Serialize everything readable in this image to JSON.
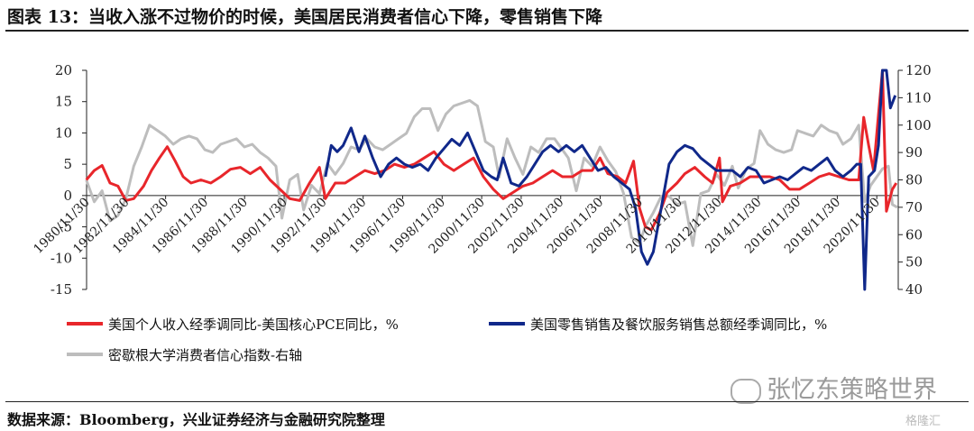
{
  "title": "图表 13：当收入涨不过物价的时候，美国居民消费者信心下降，零售销售下降",
  "source": "数据来源：Bloomberg，兴业证券经济与金融研究院整理",
  "watermark": "张忆东策略世界",
  "logo_text": "格隆汇",
  "colors": {
    "income": "#e8262b",
    "retail": "#10288a",
    "sentiment": "#bdbdbd"
  },
  "chart_data": {
    "type": "line",
    "y_left": {
      "min": -15,
      "max": 20,
      "ticks": [
        -15,
        -10,
        -5,
        0,
        5,
        10,
        15,
        20
      ]
    },
    "y_right": {
      "min": 40,
      "max": 120,
      "ticks": [
        40,
        50,
        60,
        70,
        80,
        90,
        100,
        110,
        120
      ]
    },
    "x_range": [
      "1980-11-30",
      "2021-12-31"
    ],
    "x_ticks": [
      "1980/11/30",
      "1982/11/30",
      "1984/11/30",
      "1986/11/30",
      "1988/11/30",
      "1990/11/30",
      "1992/11/30",
      "1994/11/30",
      "1996/11/30",
      "1998/11/30",
      "2000/11/30",
      "2002/11/30",
      "2004/11/30",
      "2006/11/30",
      "2008/11/30",
      "2010/11/30",
      "2012/11/30",
      "2014/11/30",
      "2016/11/30",
      "2018/11/30",
      "2020/11/30"
    ],
    "series": [
      {
        "name": "美国个人收入经季调同比-美国核心PCE同比，%",
        "axis": "left",
        "color": "#e8262b",
        "points": [
          [
            1980.9,
            2.5
          ],
          [
            1981.3,
            4.0
          ],
          [
            1981.7,
            4.8
          ],
          [
            1982.1,
            2.0
          ],
          [
            1982.5,
            1.5
          ],
          [
            1982.9,
            -0.8
          ],
          [
            1983.3,
            -0.5
          ],
          [
            1983.8,
            1.5
          ],
          [
            1984.2,
            4.0
          ],
          [
            1984.6,
            6.0
          ],
          [
            1985.0,
            7.8
          ],
          [
            1985.4,
            5.5
          ],
          [
            1985.8,
            3.0
          ],
          [
            1986.2,
            2.0
          ],
          [
            1986.7,
            2.5
          ],
          [
            1987.2,
            2.0
          ],
          [
            1987.7,
            3.0
          ],
          [
            1988.2,
            4.2
          ],
          [
            1988.7,
            4.5
          ],
          [
            1989.2,
            3.5
          ],
          [
            1989.7,
            4.5
          ],
          [
            1990.2,
            2.5
          ],
          [
            1990.7,
            1.0
          ],
          [
            1991.2,
            -0.5
          ],
          [
            1991.7,
            -0.8
          ],
          [
            1992.2,
            2.0
          ],
          [
            1992.7,
            4.5
          ],
          [
            1993.0,
            -0.5
          ],
          [
            1993.5,
            2.0
          ],
          [
            1994.0,
            2.0
          ],
          [
            1994.5,
            3.0
          ],
          [
            1995.0,
            4.0
          ],
          [
            1995.5,
            3.5
          ],
          [
            1996.0,
            4.0
          ],
          [
            1996.5,
            5.0
          ],
          [
            1997.0,
            4.5
          ],
          [
            1997.5,
            5.0
          ],
          [
            1998.0,
            6.0
          ],
          [
            1998.5,
            7.0
          ],
          [
            1999.0,
            5.0
          ],
          [
            1999.5,
            4.0
          ],
          [
            2000.0,
            5.0
          ],
          [
            2000.5,
            6.0
          ],
          [
            2001.0,
            3.0
          ],
          [
            2001.5,
            1.0
          ],
          [
            2002.0,
            -0.5
          ],
          [
            2002.5,
            0.5
          ],
          [
            2003.0,
            1.5
          ],
          [
            2003.5,
            2.0
          ],
          [
            2004.0,
            3.0
          ],
          [
            2004.5,
            4.0
          ],
          [
            2005.0,
            3.0
          ],
          [
            2005.5,
            3.0
          ],
          [
            2006.0,
            4.0
          ],
          [
            2006.5,
            4.0
          ],
          [
            2006.9,
            6.0
          ],
          [
            2007.3,
            3.5
          ],
          [
            2007.8,
            3.0
          ],
          [
            2008.2,
            2.0
          ],
          [
            2008.6,
            5.5
          ],
          [
            2008.9,
            -2.0
          ],
          [
            2009.2,
            -5.0
          ],
          [
            2009.5,
            -5.5
          ],
          [
            2009.9,
            -3.0
          ],
          [
            2010.3,
            0.5
          ],
          [
            2010.8,
            2.0
          ],
          [
            2011.2,
            3.5
          ],
          [
            2011.7,
            4.5
          ],
          [
            2012.2,
            3.0
          ],
          [
            2012.6,
            2.0
          ],
          [
            2012.95,
            6.0
          ],
          [
            2013.1,
            -1.0
          ],
          [
            2013.5,
            1.5
          ],
          [
            2014.0,
            2.0
          ],
          [
            2014.5,
            3.0
          ],
          [
            2015.0,
            3.0
          ],
          [
            2015.5,
            3.0
          ],
          [
            2016.0,
            2.5
          ],
          [
            2016.5,
            1.0
          ],
          [
            2017.0,
            1.0
          ],
          [
            2017.5,
            2.0
          ],
          [
            2018.0,
            3.0
          ],
          [
            2018.5,
            3.5
          ],
          [
            2019.0,
            3.0
          ],
          [
            2019.5,
            2.5
          ],
          [
            2020.0,
            2.5
          ],
          [
            2020.25,
            12.5
          ],
          [
            2020.5,
            8.0
          ],
          [
            2020.75,
            4.0
          ],
          [
            2021.0,
            13.0
          ],
          [
            2021.2,
            20.0
          ],
          [
            2021.4,
            -2.5
          ],
          [
            2021.7,
            1.0
          ],
          [
            2021.9,
            2.0
          ]
        ]
      },
      {
        "name": "美国零售销售及餐饮服务销售总额经季调同比，%",
        "axis": "left",
        "color": "#10288a",
        "points": [
          [
            1993.0,
            3.0
          ],
          [
            1993.3,
            8.0
          ],
          [
            1993.6,
            7.0
          ],
          [
            1993.9,
            8.0
          ],
          [
            1994.3,
            10.8
          ],
          [
            1994.7,
            7.0
          ],
          [
            1995.0,
            9.5
          ],
          [
            1995.4,
            6.0
          ],
          [
            1995.8,
            3.0
          ],
          [
            1996.2,
            5.0
          ],
          [
            1996.6,
            6.0
          ],
          [
            1997.0,
            5.0
          ],
          [
            1997.4,
            4.5
          ],
          [
            1997.8,
            5.0
          ],
          [
            1998.2,
            4.0
          ],
          [
            1998.6,
            6.0
          ],
          [
            1999.0,
            7.5
          ],
          [
            1999.4,
            9.0
          ],
          [
            1999.8,
            8.0
          ],
          [
            2000.2,
            10.0
          ],
          [
            2000.6,
            7.0
          ],
          [
            2001.0,
            4.0
          ],
          [
            2001.4,
            3.0
          ],
          [
            2001.7,
            2.5
          ],
          [
            2002.0,
            6.0
          ],
          [
            2002.4,
            2.0
          ],
          [
            2002.8,
            1.5
          ],
          [
            2003.2,
            3.0
          ],
          [
            2003.6,
            5.0
          ],
          [
            2004.0,
            7.0
          ],
          [
            2004.4,
            8.0
          ],
          [
            2004.8,
            7.0
          ],
          [
            2005.2,
            8.0
          ],
          [
            2005.6,
            7.0
          ],
          [
            2006.0,
            8.0
          ],
          [
            2006.4,
            6.0
          ],
          [
            2006.8,
            4.0
          ],
          [
            2007.2,
            4.5
          ],
          [
            2007.6,
            3.0
          ],
          [
            2008.0,
            2.0
          ],
          [
            2008.4,
            1.0
          ],
          [
            2008.7,
            -2.0
          ],
          [
            2009.0,
            -9.0
          ],
          [
            2009.3,
            -11.0
          ],
          [
            2009.6,
            -9.0
          ],
          [
            2010.0,
            -2.0
          ],
          [
            2010.4,
            5.0
          ],
          [
            2010.8,
            7.0
          ],
          [
            2011.2,
            8.0
          ],
          [
            2011.6,
            7.5
          ],
          [
            2012.0,
            6.0
          ],
          [
            2012.4,
            5.0
          ],
          [
            2012.8,
            4.0
          ],
          [
            2013.2,
            4.0
          ],
          [
            2013.6,
            4.0
          ],
          [
            2014.0,
            3.0
          ],
          [
            2014.4,
            4.5
          ],
          [
            2014.8,
            4.0
          ],
          [
            2015.2,
            2.0
          ],
          [
            2015.6,
            2.5
          ],
          [
            2016.0,
            3.0
          ],
          [
            2016.4,
            2.5
          ],
          [
            2016.8,
            3.5
          ],
          [
            2017.2,
            4.5
          ],
          [
            2017.6,
            4.0
          ],
          [
            2018.0,
            5.0
          ],
          [
            2018.4,
            6.0
          ],
          [
            2018.8,
            4.0
          ],
          [
            2019.2,
            3.0
          ],
          [
            2019.6,
            4.0
          ],
          [
            2019.9,
            5.0
          ],
          [
            2020.1,
            5.0
          ],
          [
            2020.3,
            -15.0
          ],
          [
            2020.5,
            3.0
          ],
          [
            2020.8,
            4.0
          ],
          [
            2021.0,
            8.0
          ],
          [
            2021.2,
            20.0
          ],
          [
            2021.4,
            20.0
          ],
          [
            2021.6,
            14.0
          ],
          [
            2021.85,
            16.0
          ]
        ]
      },
      {
        "name": "密歇根大学消费者信心指数-右轴",
        "axis": "right",
        "color": "#bdbdbd",
        "points": [
          [
            1980.9,
            80.0
          ],
          [
            1981.3,
            72.0
          ],
          [
            1981.7,
            76.0
          ],
          [
            1982.1,
            65.0
          ],
          [
            1982.5,
            67.0
          ],
          [
            1982.9,
            73.0
          ],
          [
            1983.3,
            85.0
          ],
          [
            1983.7,
            92.0
          ],
          [
            1984.1,
            100.0
          ],
          [
            1984.5,
            98.0
          ],
          [
            1984.9,
            96.0
          ],
          [
            1985.3,
            93.0
          ],
          [
            1985.7,
            95.0
          ],
          [
            1986.1,
            96.0
          ],
          [
            1986.5,
            95.0
          ],
          [
            1986.9,
            91.0
          ],
          [
            1987.3,
            90.0
          ],
          [
            1987.7,
            93.0
          ],
          [
            1988.1,
            94.0
          ],
          [
            1988.5,
            95.0
          ],
          [
            1988.9,
            92.0
          ],
          [
            1989.3,
            93.0
          ],
          [
            1989.7,
            90.0
          ],
          [
            1990.1,
            88.0
          ],
          [
            1990.5,
            85.0
          ],
          [
            1990.8,
            66.0
          ],
          [
            1991.2,
            80.0
          ],
          [
            1991.6,
            82.0
          ],
          [
            1991.9,
            69.0
          ],
          [
            1992.3,
            78.0
          ],
          [
            1992.7,
            75.0
          ],
          [
            1993.1,
            86.0
          ],
          [
            1993.5,
            82.0
          ],
          [
            1993.9,
            86.0
          ],
          [
            1994.3,
            92.0
          ],
          [
            1994.7,
            91.0
          ],
          [
            1995.1,
            95.0
          ],
          [
            1995.5,
            92.0
          ],
          [
            1995.9,
            91.0
          ],
          [
            1996.3,
            93.0
          ],
          [
            1996.7,
            95.0
          ],
          [
            1997.1,
            97.0
          ],
          [
            1997.5,
            103.0
          ],
          [
            1997.9,
            106.0
          ],
          [
            1998.3,
            106.0
          ],
          [
            1998.7,
            98.0
          ],
          [
            1999.1,
            104.0
          ],
          [
            1999.5,
            107.0
          ],
          [
            1999.9,
            108.0
          ],
          [
            2000.3,
            109.0
          ],
          [
            2000.7,
            107.0
          ],
          [
            2001.1,
            94.0
          ],
          [
            2001.5,
            92.0
          ],
          [
            2001.8,
            81.0
          ],
          [
            2002.2,
            95.0
          ],
          [
            2002.6,
            88.0
          ],
          [
            2003.0,
            82.0
          ],
          [
            2003.4,
            92.0
          ],
          [
            2003.8,
            90.0
          ],
          [
            2004.2,
            95.0
          ],
          [
            2004.6,
            95.0
          ],
          [
            2004.9,
            92.0
          ],
          [
            2005.3,
            88.0
          ],
          [
            2005.7,
            76.0
          ],
          [
            2006.1,
            88.0
          ],
          [
            2006.5,
            85.0
          ],
          [
            2006.9,
            92.0
          ],
          [
            2007.3,
            87.0
          ],
          [
            2007.7,
            83.0
          ],
          [
            2008.1,
            75.0
          ],
          [
            2008.5,
            59.0
          ],
          [
            2008.9,
            57.0
          ],
          [
            2009.2,
            63.0
          ],
          [
            2009.6,
            68.0
          ],
          [
            2010.0,
            74.0
          ],
          [
            2010.4,
            74.0
          ],
          [
            2010.8,
            71.0
          ],
          [
            2011.2,
            72.0
          ],
          [
            2011.6,
            56.0
          ],
          [
            2012.0,
            75.0
          ],
          [
            2012.4,
            76.0
          ],
          [
            2012.8,
            82.0
          ],
          [
            2013.2,
            78.0
          ],
          [
            2013.6,
            85.0
          ],
          [
            2013.9,
            77.0
          ],
          [
            2014.3,
            84.0
          ],
          [
            2014.7,
            86.0
          ],
          [
            2015.0,
            98.0
          ],
          [
            2015.4,
            93.0
          ],
          [
            2015.8,
            91.0
          ],
          [
            2016.2,
            90.0
          ],
          [
            2016.6,
            91.0
          ],
          [
            2016.9,
            98.0
          ],
          [
            2017.3,
            97.0
          ],
          [
            2017.7,
            96.0
          ],
          [
            2018.1,
            100.0
          ],
          [
            2018.5,
            98.0
          ],
          [
            2018.9,
            97.0
          ],
          [
            2019.2,
            93.0
          ],
          [
            2019.6,
            95.0
          ],
          [
            2020.0,
            100.0
          ],
          [
            2020.3,
            72.0
          ],
          [
            2020.6,
            78.0
          ],
          [
            2020.9,
            81.0
          ],
          [
            2021.2,
            84.0
          ],
          [
            2021.5,
            85.0
          ],
          [
            2021.7,
            71.0
          ],
          [
            2021.95,
            70.0
          ]
        ]
      }
    ]
  }
}
